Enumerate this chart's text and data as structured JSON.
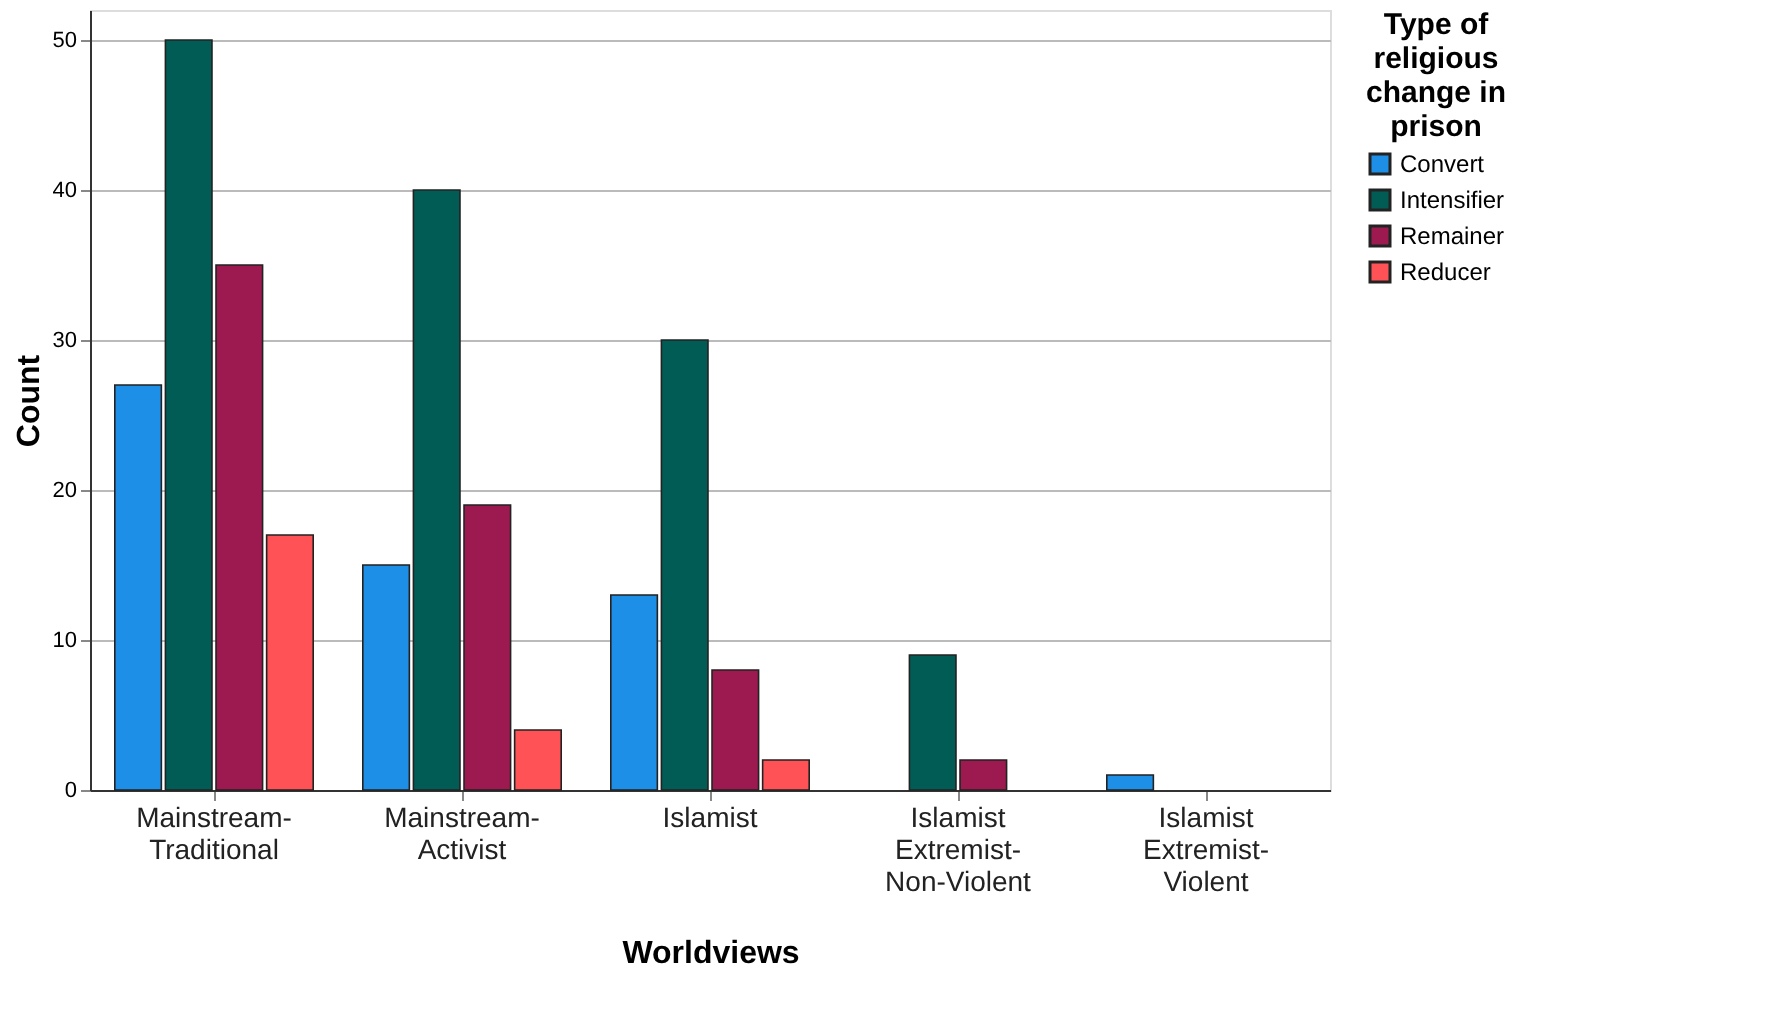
{
  "chart_data": {
    "type": "bar",
    "xlabel": "Worldviews",
    "ylabel": "Count",
    "legend_title": "Type of religious change in prison",
    "categories": [
      "Mainstream-Traditional",
      "Mainstream-Activist",
      "Islamist",
      "Islamist Extremist-Non-Violent",
      "Islamist Extremist-Violent"
    ],
    "series": [
      {
        "name": "Convert",
        "color": "#1e8fe6",
        "values": [
          27,
          15,
          13,
          null,
          1
        ]
      },
      {
        "name": "Intensifier",
        "color": "#005c55",
        "values": [
          50,
          40,
          30,
          9,
          null
        ]
      },
      {
        "name": "Remainer",
        "color": "#9c1a50",
        "values": [
          35,
          19,
          8,
          2,
          null
        ]
      },
      {
        "name": "Reducer",
        "color": "#ff5257",
        "values": [
          17,
          4,
          2,
          null,
          null
        ]
      }
    ],
    "ylim": [
      0,
      52
    ],
    "yticks": [
      0,
      10,
      20,
      30,
      40,
      50
    ],
    "grid": "y",
    "legend": "top right"
  }
}
